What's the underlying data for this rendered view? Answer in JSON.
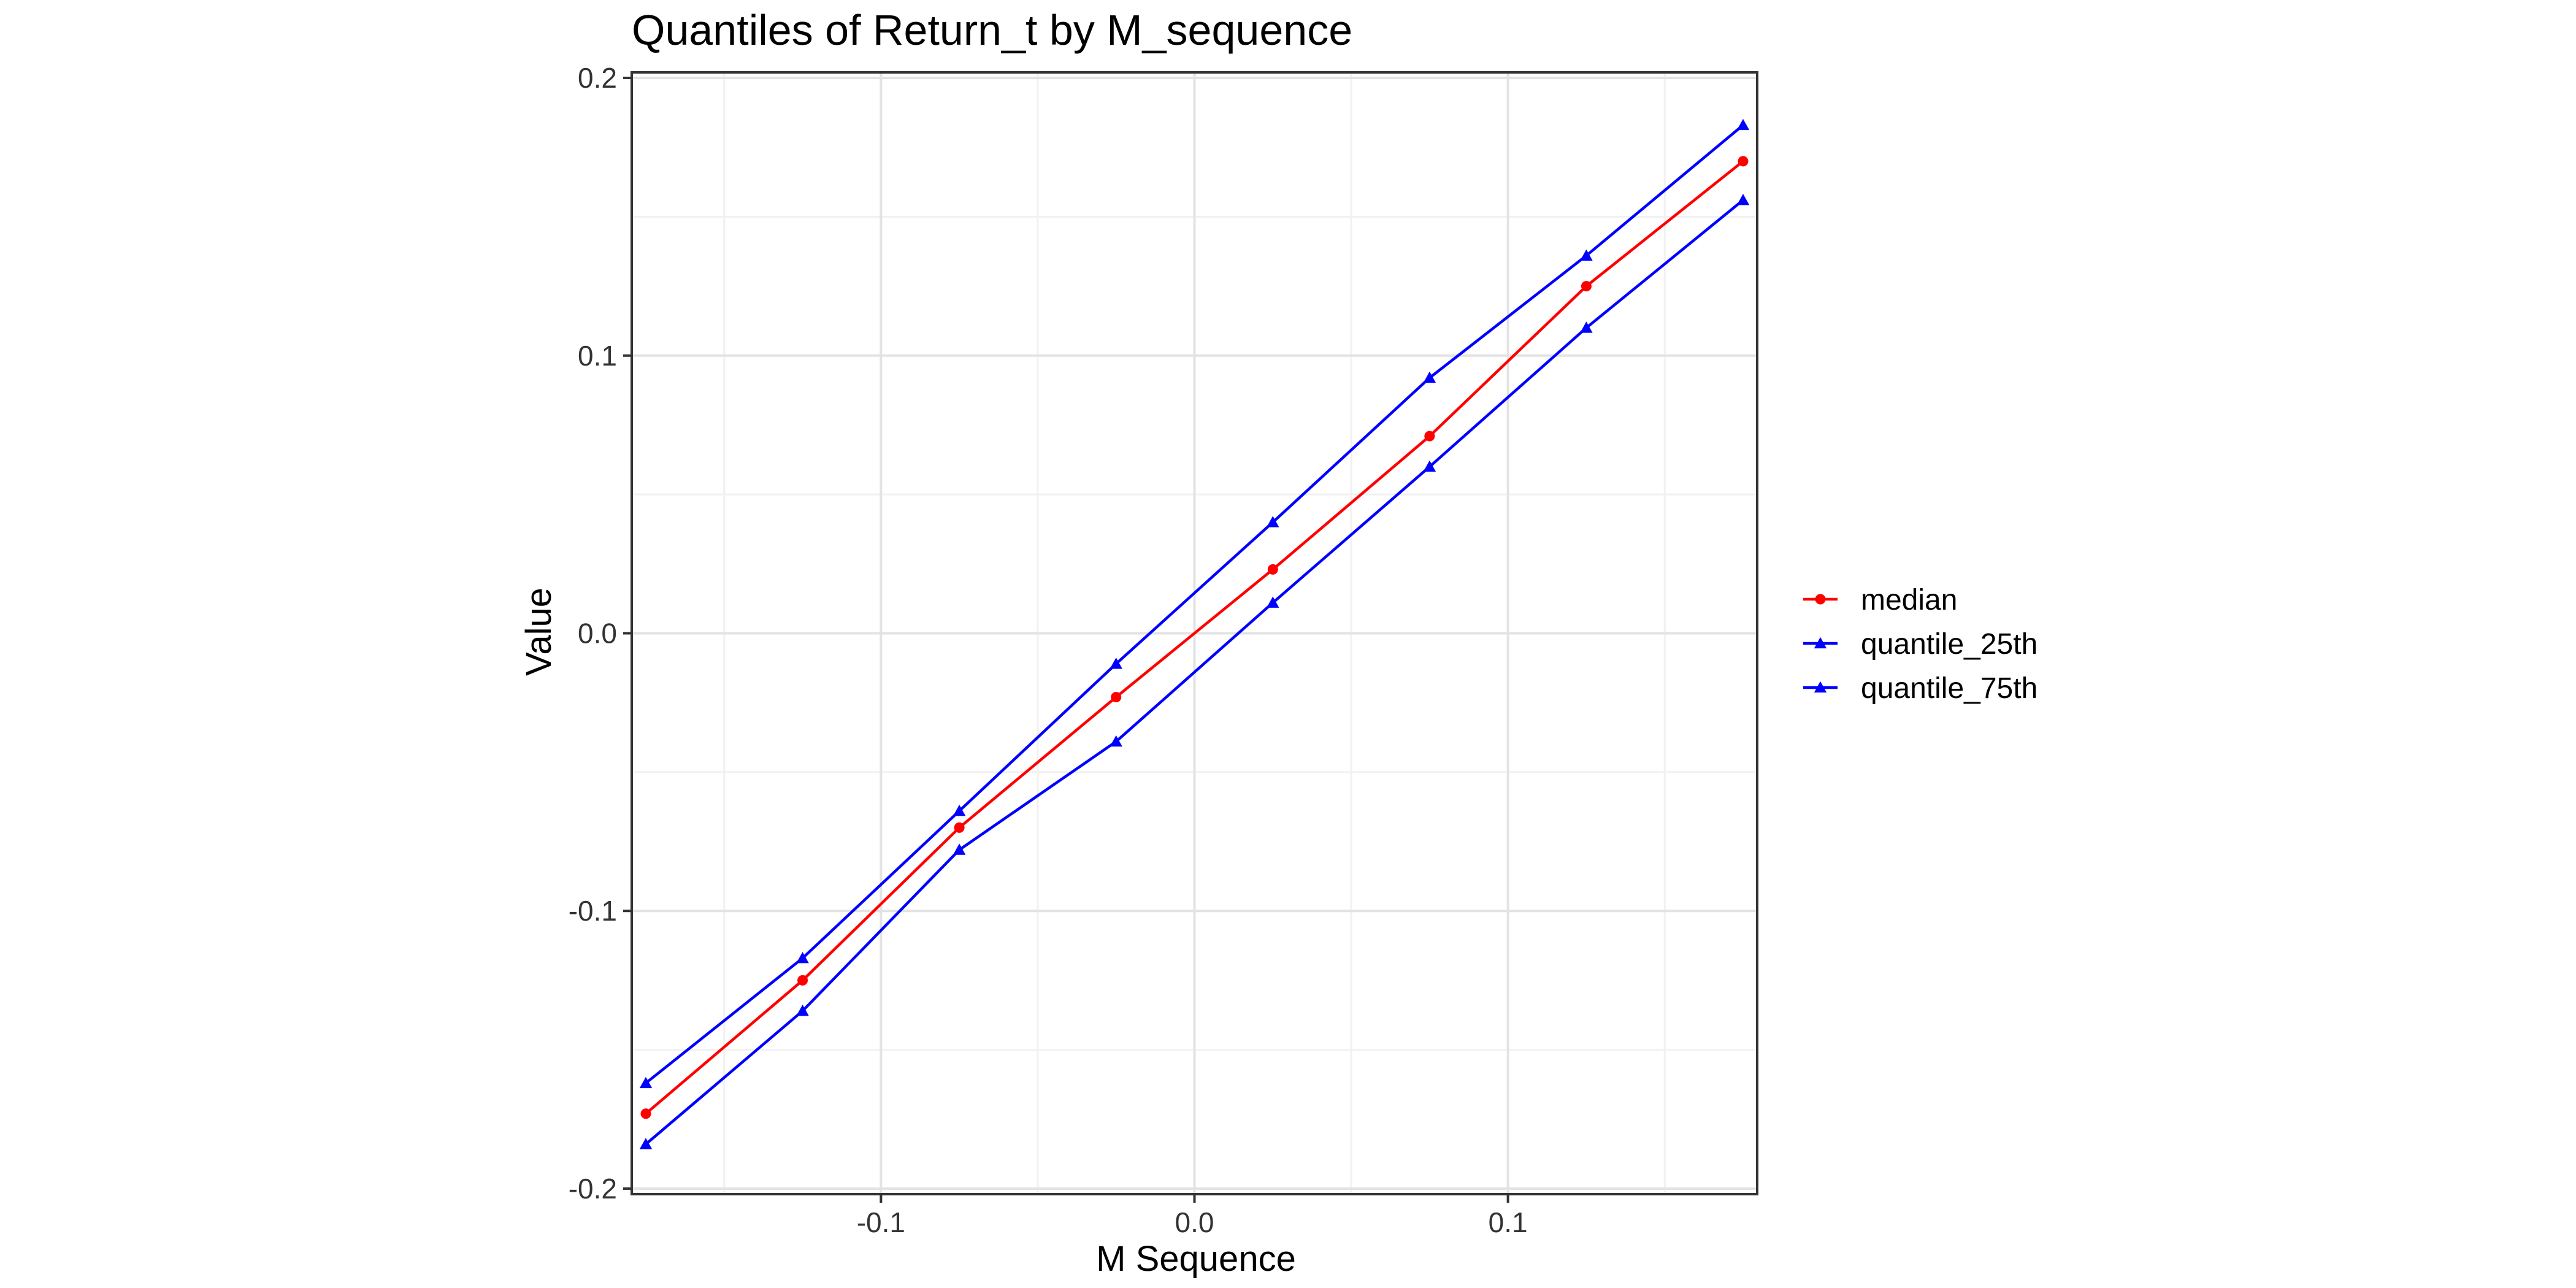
{
  "chart_data": {
    "type": "line",
    "title": "Quantiles of Return_t by M_sequence",
    "xlabel": "M Sequence",
    "ylabel": "Value",
    "x": [
      -0.175,
      -0.125,
      -0.075,
      -0.025,
      0.025,
      0.075,
      0.125,
      0.175
    ],
    "xlim": [
      -0.1795,
      0.1795
    ],
    "ylim": [
      -0.2,
      0.2
    ],
    "x_ticks": [
      -0.1,
      0.0,
      0.1
    ],
    "x_tick_labels": [
      "-0.1",
      "0.0",
      "0.1"
    ],
    "y_ticks": [
      -0.2,
      -0.1,
      0.0,
      0.1,
      0.2
    ],
    "y_tick_labels": [
      "-0.2",
      "-0.1",
      "0.0",
      "0.1",
      "0.2"
    ],
    "grid": true,
    "legend_position": "right",
    "series": [
      {
        "name": "median",
        "color": "#ff0000",
        "marker": "circle",
        "values": [
          -0.173,
          -0.125,
          -0.07,
          -0.023,
          0.023,
          0.071,
          0.125,
          0.17
        ]
      },
      {
        "name": "quantile_25th",
        "color": "#0000ff",
        "marker": "triangle",
        "values": [
          -0.162,
          -0.117,
          -0.064,
          -0.011,
          0.04,
          0.092,
          0.136,
          0.183
        ]
      },
      {
        "name": "quantile_75th",
        "color": "#0000ff",
        "marker": "triangle",
        "values": [
          -0.184,
          -0.136,
          -0.078,
          -0.039,
          0.011,
          0.06,
          0.11,
          0.156
        ]
      }
    ]
  }
}
